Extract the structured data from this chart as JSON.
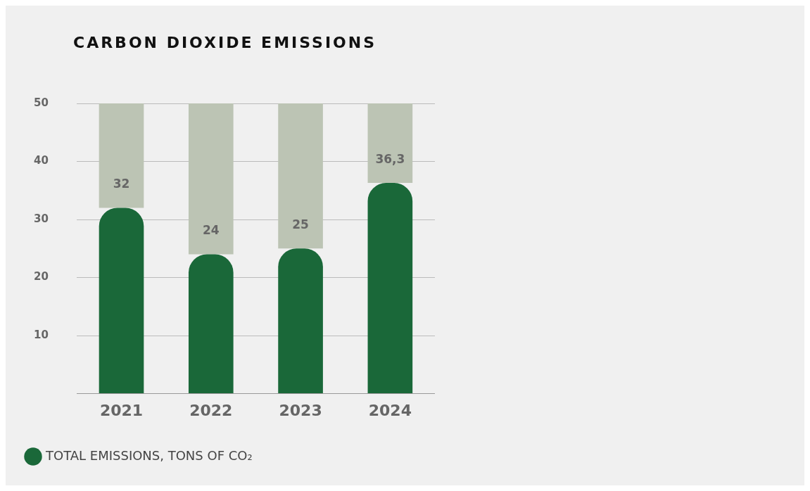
{
  "chart_data": {
    "type": "bar",
    "title": "CARBON DIOXIDE EMISSIONS",
    "categories": [
      "2021",
      "2022",
      "2023",
      "2024"
    ],
    "stacked": true,
    "series": [
      {
        "name": "TOTAL EMISSIONS, TONS OF CO₂",
        "color": "#1a6839",
        "values": [
          32,
          24,
          25,
          36.3
        ],
        "value_labels": [
          "32",
          "24",
          "25",
          "36,3"
        ]
      },
      {
        "color": "#bcc4b4",
        "values": [
          18,
          26,
          25,
          13.7
        ]
      }
    ],
    "ylim": [
      0,
      50
    ],
    "yticks": [
      {
        "value": 0,
        "label": null
      },
      10,
      20,
      30,
      40,
      50
    ],
    "grid": "y",
    "legend": "bottom left"
  }
}
